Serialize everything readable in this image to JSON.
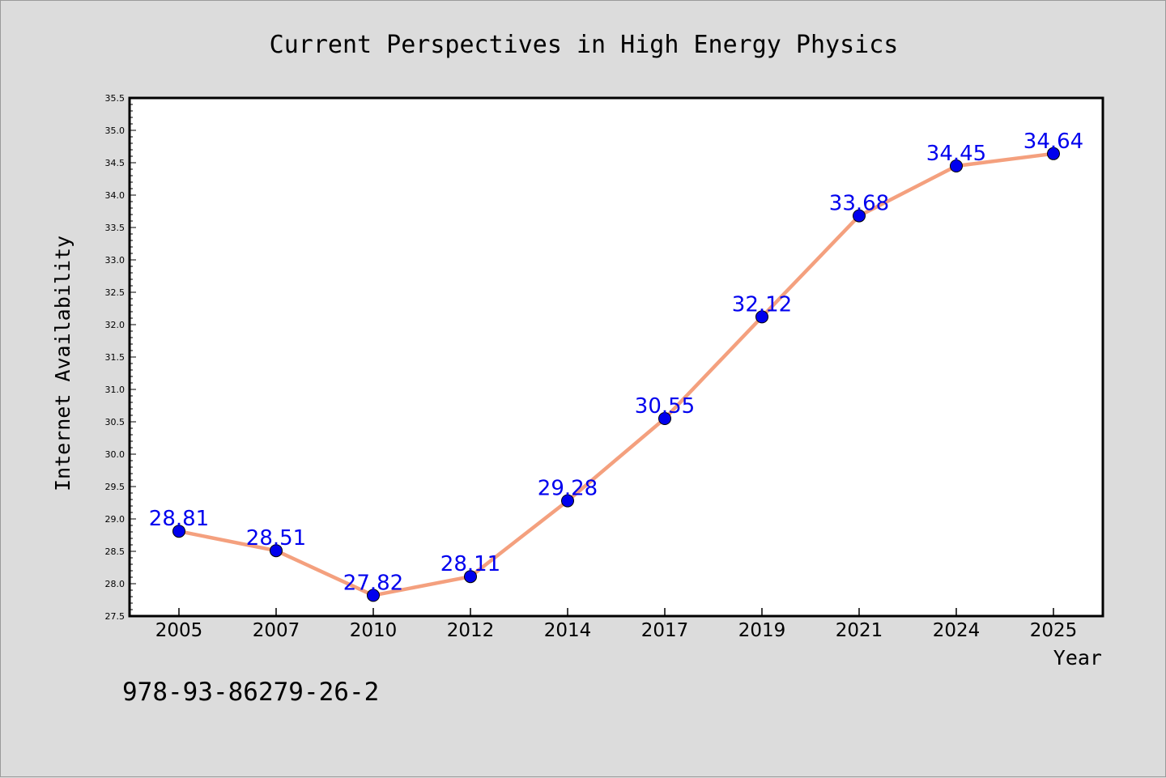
{
  "chart_data": {
    "type": "line",
    "title": "Current Perspectives in High Energy Physics",
    "xlabel": "Year",
    "ylabel": "Internet Availability",
    "categories": [
      "2005",
      "2007",
      "2010",
      "2012",
      "2014",
      "2017",
      "2019",
      "2021",
      "2024",
      "2025"
    ],
    "series": [
      {
        "values": [
          28.81,
          28.51,
          27.82,
          28.11,
          29.28,
          30.55,
          32.12,
          33.68,
          34.45,
          34.64
        ]
      }
    ],
    "data_labels": [
      "28.81",
      "28.51",
      "27.82",
      "28.11",
      "29.28",
      "30.55",
      "32.12",
      "33.68",
      "34.45",
      "34.64"
    ],
    "ylim": [
      27.5,
      35.5
    ],
    "yticks": [
      "27.5",
      "28.0",
      "28.5",
      "29.0",
      "29.5",
      "30.0",
      "30.5",
      "31.0",
      "31.5",
      "32.0",
      "32.5",
      "33.0",
      "33.5",
      "34.0",
      "34.5",
      "35.0",
      "35.5"
    ],
    "grid": false,
    "legend": "none",
    "colors": {
      "line": "#f4a07e",
      "marker": "#0000ee",
      "label": "#0000ee",
      "plot_bg": "#ffffff",
      "page_bg": "#dcdcdc"
    }
  },
  "footnote": "978-93-86279-26-2"
}
